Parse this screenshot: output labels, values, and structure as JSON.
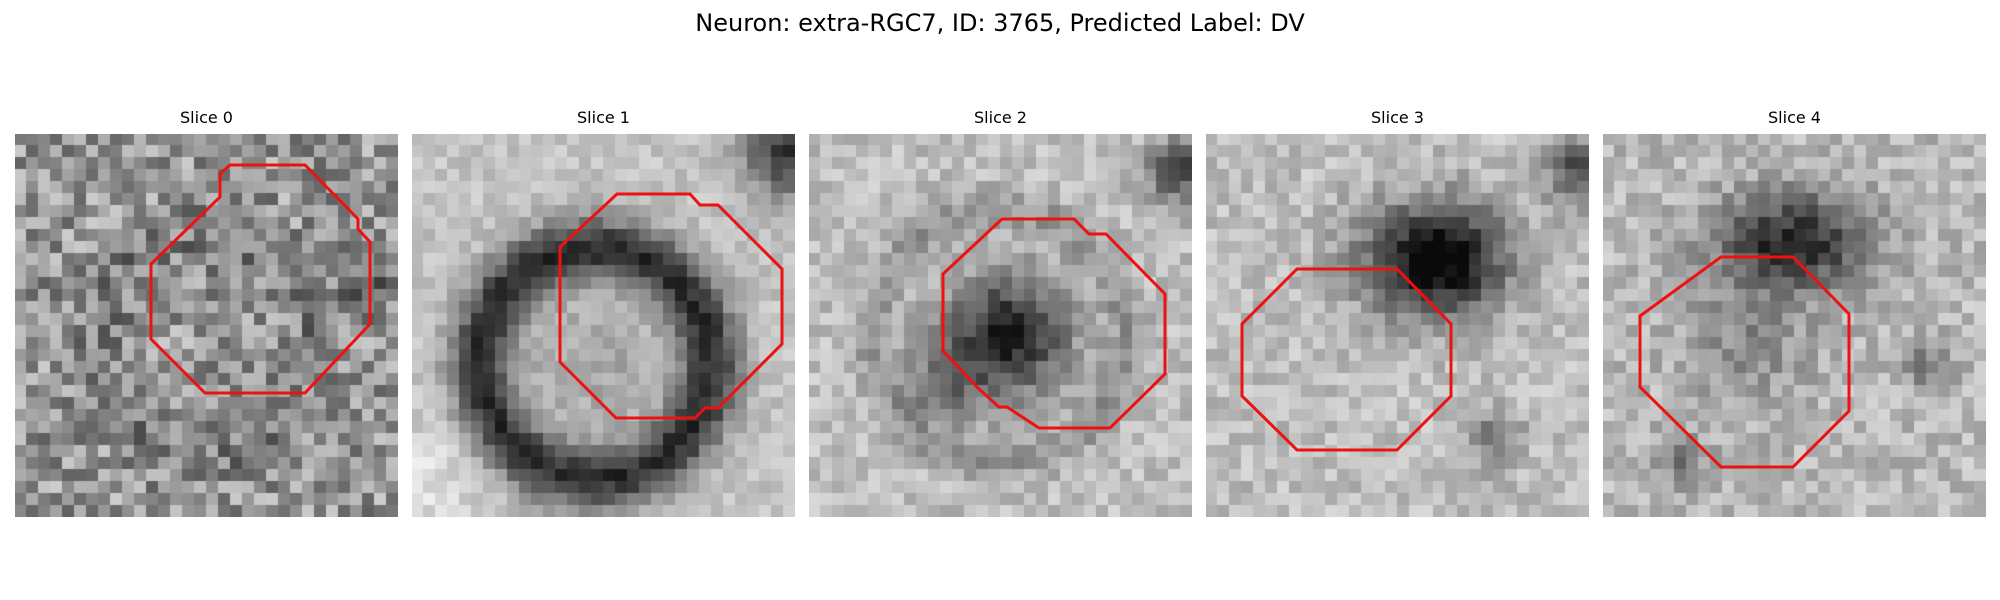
{
  "figure": {
    "title": "Neuron: extra-RGC7, ID: 3765, Predicted Label: DV",
    "overlay_color": "#ee1111"
  },
  "panels": [
    {
      "title": "Slice 0"
    },
    {
      "title": "Slice 1"
    },
    {
      "title": "Slice 2"
    },
    {
      "title": "Slice 3"
    },
    {
      "title": "Slice 4"
    }
  ]
}
